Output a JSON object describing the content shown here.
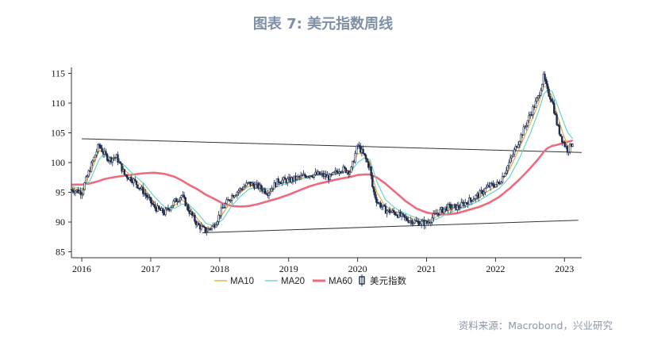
{
  "figure": {
    "title": "图表 7:  美元指数周线",
    "source": "资料来源：Macrobond，兴业研究"
  },
  "chart_data": {
    "type": "line",
    "title": "",
    "xlabel": "",
    "ylabel": "",
    "ylim": [
      84,
      116
    ],
    "yticks": [
      85,
      90,
      95,
      100,
      105,
      110,
      115
    ],
    "xlim": [
      2015.85,
      2023.25
    ],
    "xticks": [
      {
        "label": "2016",
        "pos": 2016.0
      },
      {
        "label": "2017",
        "pos": 2017.0
      },
      {
        "label": "2018",
        "pos": 2018.0
      },
      {
        "label": "2019",
        "pos": 2019.0
      },
      {
        "label": "2020",
        "pos": 2020.0
      },
      {
        "label": "2021",
        "pos": 2021.0
      },
      {
        "label": "2022",
        "pos": 2022.0
      },
      {
        "label": "2023",
        "pos": 2023.0
      }
    ],
    "legend": {
      "placement": "bottom"
    },
    "colors": {
      "ma10": "#e8a33a",
      "ma20": "#5fd3c7",
      "ma60": "#ee6b7e",
      "index": "#1f2d4d",
      "trend": "#333333"
    },
    "series": [
      {
        "name": "美元指数",
        "style": "candlestick",
        "x": [
          2015.85,
          2016.0,
          2016.12,
          2016.25,
          2016.32,
          2016.4,
          2016.5,
          2016.62,
          2016.75,
          2016.9,
          2017.05,
          2017.2,
          2017.35,
          2017.45,
          2017.55,
          2017.68,
          2017.8,
          2017.92,
          2018.05,
          2018.18,
          2018.3,
          2018.42,
          2018.55,
          2018.7,
          2018.85,
          2019.0,
          2019.15,
          2019.3,
          2019.45,
          2019.6,
          2019.75,
          2019.9,
          2020.0,
          2020.1,
          2020.18,
          2020.22,
          2020.28,
          2020.4,
          2020.55,
          2020.7,
          2020.85,
          2021.0,
          2021.15,
          2021.3,
          2021.45,
          2021.6,
          2021.75,
          2021.9,
          2022.05,
          2022.2,
          2022.35,
          2022.5,
          2022.62,
          2022.7,
          2022.75,
          2022.82,
          2022.9,
          2022.98,
          2023.05,
          2023.12
        ],
        "values": [
          95.5,
          95.0,
          99.0,
          103.0,
          101.5,
          100.5,
          101.0,
          98.0,
          97.0,
          95.0,
          92.5,
          91.5,
          93.5,
          94.5,
          92.0,
          89.5,
          88.5,
          89.5,
          92.5,
          94.5,
          95.5,
          96.5,
          96.0,
          95.0,
          97.0,
          97.0,
          97.5,
          98.0,
          98.0,
          97.5,
          99.0,
          98.5,
          103.0,
          101.0,
          99.0,
          95.5,
          93.5,
          92.0,
          91.5,
          90.5,
          90.0,
          89.8,
          91.5,
          92.5,
          92.5,
          93.5,
          94.5,
          96.0,
          96.5,
          100.0,
          104.0,
          108.0,
          111.0,
          114.5,
          112.0,
          110.5,
          106.0,
          103.5,
          102.0,
          103.5
        ]
      },
      {
        "name": "MA10",
        "x": [
          2015.85,
          2016.0,
          2016.12,
          2016.25,
          2016.32,
          2016.4,
          2016.5,
          2016.62,
          2016.75,
          2016.9,
          2017.05,
          2017.2,
          2017.35,
          2017.45,
          2017.55,
          2017.68,
          2017.8,
          2017.92,
          2018.05,
          2018.18,
          2018.3,
          2018.42,
          2018.55,
          2018.7,
          2018.85,
          2019.0,
          2019.15,
          2019.3,
          2019.45,
          2019.6,
          2019.75,
          2019.9,
          2020.0,
          2020.1,
          2020.18,
          2020.22,
          2020.28,
          2020.4,
          2020.55,
          2020.7,
          2020.85,
          2021.0,
          2021.15,
          2021.3,
          2021.45,
          2021.6,
          2021.75,
          2021.9,
          2022.05,
          2022.2,
          2022.35,
          2022.5,
          2022.62,
          2022.7,
          2022.75,
          2022.82,
          2022.9,
          2022.98,
          2023.05,
          2023.12
        ],
        "values": [
          95.8,
          95.3,
          98.0,
          102.0,
          101.8,
          100.8,
          100.8,
          98.8,
          97.3,
          95.8,
          93.3,
          91.8,
          92.8,
          93.8,
          92.8,
          90.5,
          89.0,
          89.2,
          91.5,
          93.8,
          95.0,
          96.0,
          96.2,
          95.3,
          96.3,
          96.9,
          97.3,
          97.8,
          98.0,
          97.7,
          98.5,
          98.7,
          101.5,
          101.5,
          100.0,
          97.5,
          95.0,
          92.7,
          91.8,
          91.0,
          90.3,
          89.9,
          90.9,
          92.0,
          92.4,
          93.1,
          94.0,
          95.3,
          96.2,
          98.8,
          102.5,
          106.5,
          109.8,
          112.8,
          112.6,
          111.2,
          107.8,
          104.8,
          102.8,
          103.0
        ]
      },
      {
        "name": "MA20",
        "x": [
          2015.85,
          2016.0,
          2016.12,
          2016.25,
          2016.32,
          2016.4,
          2016.5,
          2016.62,
          2016.75,
          2016.9,
          2017.05,
          2017.2,
          2017.35,
          2017.45,
          2017.55,
          2017.68,
          2017.8,
          2017.92,
          2018.05,
          2018.18,
          2018.3,
          2018.42,
          2018.55,
          2018.7,
          2018.85,
          2019.0,
          2019.15,
          2019.3,
          2019.45,
          2019.6,
          2019.75,
          2019.9,
          2020.0,
          2020.1,
          2020.18,
          2020.22,
          2020.28,
          2020.4,
          2020.55,
          2020.7,
          2020.85,
          2021.0,
          2021.15,
          2021.3,
          2021.45,
          2021.6,
          2021.75,
          2021.9,
          2022.05,
          2022.2,
          2022.35,
          2022.5,
          2022.62,
          2022.7,
          2022.75,
          2022.82,
          2022.9,
          2022.98,
          2023.05,
          2023.12
        ],
        "values": [
          96.0,
          95.6,
          97.0,
          100.5,
          101.5,
          101.0,
          100.7,
          99.5,
          98.0,
          96.5,
          94.3,
          92.5,
          92.3,
          93.0,
          93.0,
          91.5,
          89.8,
          89.3,
          90.5,
          92.8,
          94.3,
          95.5,
          96.0,
          95.6,
          96.0,
          96.6,
          97.1,
          97.6,
          97.9,
          97.8,
          98.2,
          98.5,
          100.0,
          100.8,
          100.5,
          99.0,
          96.8,
          93.8,
          92.3,
          91.4,
          90.7,
          90.2,
          90.5,
          91.4,
          92.1,
          92.7,
          93.5,
          94.6,
          95.6,
          97.5,
          100.8,
          104.8,
          108.5,
          111.5,
          112.2,
          112.0,
          109.6,
          107.0,
          105.0,
          104.0
        ]
      },
      {
        "name": "MA60",
        "x": [
          2015.85,
          2016.0,
          2016.12,
          2016.25,
          2016.32,
          2016.4,
          2016.5,
          2016.62,
          2016.75,
          2016.9,
          2017.05,
          2017.2,
          2017.35,
          2017.45,
          2017.55,
          2017.68,
          2017.8,
          2017.92,
          2018.05,
          2018.18,
          2018.3,
          2018.42,
          2018.55,
          2018.7,
          2018.85,
          2019.0,
          2019.15,
          2019.3,
          2019.45,
          2019.6,
          2019.75,
          2019.9,
          2020.0,
          2020.1,
          2020.18,
          2020.22,
          2020.28,
          2020.4,
          2020.55,
          2020.7,
          2020.85,
          2021.0,
          2021.15,
          2021.3,
          2021.45,
          2021.6,
          2021.75,
          2021.9,
          2022.05,
          2022.2,
          2022.35,
          2022.5,
          2022.62,
          2022.7,
          2022.75,
          2022.82,
          2022.9,
          2022.98,
          2023.05,
          2023.12
        ],
        "values": [
          96.3,
          96.3,
          96.5,
          96.9,
          97.2,
          97.4,
          97.6,
          97.8,
          98.0,
          98.2,
          98.3,
          98.1,
          97.6,
          97.0,
          96.3,
          95.5,
          94.6,
          93.9,
          93.1,
          92.7,
          92.6,
          92.7,
          93.0,
          93.5,
          94.0,
          94.6,
          95.3,
          96.0,
          96.5,
          96.9,
          97.3,
          97.6,
          97.9,
          98.0,
          98.0,
          97.8,
          97.5,
          96.5,
          95.0,
          93.5,
          92.3,
          91.6,
          91.3,
          91.3,
          91.5,
          92.0,
          92.5,
          93.2,
          94.2,
          95.6,
          97.2,
          99.0,
          100.6,
          101.8,
          102.4,
          102.8,
          103.0,
          103.3,
          103.5,
          103.7
        ]
      }
    ],
    "trendlines": [
      {
        "x": [
          2016.0,
          2023.25
        ],
        "values": [
          104.0,
          101.7
        ]
      },
      {
        "x": [
          2017.75,
          2023.2
        ],
        "values": [
          88.2,
          90.3
        ]
      }
    ]
  },
  "legend_items": [
    {
      "key": "ma10",
      "label": "MA10"
    },
    {
      "key": "ma20",
      "label": "MA20"
    },
    {
      "key": "ma60",
      "label": "MA60"
    },
    {
      "key": "index",
      "label": "美元指数"
    }
  ]
}
